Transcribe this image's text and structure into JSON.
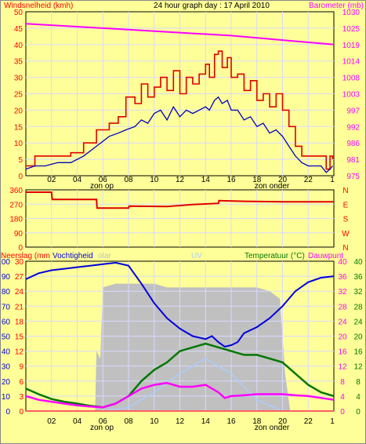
{
  "page_title": "24 hour graph day : 17 April 2010",
  "colors": {
    "background": "#ffff99",
    "plot": "#ffff99",
    "grid": "#d8d8ff",
    "frame": "#000000",
    "wind_avg": "#0000c0",
    "wind_gust": "#e00000",
    "barometer": "#ff00ff",
    "direction": "#e00000",
    "humidity": "#0000dd",
    "temperature": "#007700",
    "dewpoint": "#ff00ff",
    "solar": "#c0c0c0",
    "uv": "#aaccff",
    "rain": "#ff6060"
  },
  "chart_data": [
    {
      "id": "wind-barometer",
      "type": "line",
      "title": "24 hour graph day : 17 April 2010",
      "ylabel": "Windsnelheid (kmh)",
      "y2label": "Barometer (mb)",
      "ylim": [
        0,
        50
      ],
      "y2lim": [
        975,
        1030
      ],
      "yticks": [
        "0",
        "5",
        "10",
        "15",
        "20",
        "25",
        "30",
        "35",
        "40",
        "45",
        "50"
      ],
      "y2ticks": [
        "975",
        "981",
        "986",
        "992",
        "997",
        "1003",
        "1008",
        "1014",
        "1019",
        "1025",
        "1030"
      ],
      "xticks": [
        "02",
        "04",
        "06",
        "08",
        "10",
        "12",
        "14",
        "16",
        "18",
        "20",
        "22",
        "1"
      ],
      "annotations": [
        "zon op",
        "zon onder"
      ],
      "grid": true,
      "series": [
        {
          "key": "gust",
          "x": [
            0,
            0.7,
            1.5,
            2.5,
            3.5,
            4.5,
            5.5,
            6.5,
            7.2,
            7.8,
            8.5,
            9,
            9.5,
            10,
            10.5,
            11,
            11.5,
            12,
            12.5,
            13,
            13.5,
            14,
            14.3,
            14.7,
            15,
            15.3,
            15.7,
            16,
            16.5,
            17,
            17.5,
            18,
            18.5,
            19,
            19.5,
            20,
            20.5,
            21,
            21.5,
            22,
            22.5,
            23,
            23.4,
            23.7,
            23.9
          ],
          "values": [
            3,
            6,
            6,
            6,
            7,
            10,
            14,
            16,
            18,
            24,
            22,
            28,
            24,
            27,
            30,
            26,
            32,
            25,
            30,
            28,
            31,
            34,
            30,
            37,
            38,
            33,
            36,
            30,
            31,
            26,
            29,
            23,
            25,
            21,
            25,
            20,
            15,
            9,
            6,
            6,
            6,
            6,
            2,
            6,
            5
          ]
        },
        {
          "key": "avg",
          "x": [
            0,
            0.7,
            1.5,
            2.5,
            3.5,
            4.5,
            5.5,
            6.5,
            7.2,
            7.8,
            8.5,
            9,
            9.5,
            10,
            10.5,
            11,
            11.5,
            12,
            12.5,
            13,
            13.5,
            14,
            14.3,
            14.7,
            15,
            15.3,
            15.7,
            16,
            16.5,
            17,
            17.5,
            18,
            18.5,
            19,
            19.5,
            20,
            20.5,
            21,
            21.5,
            22,
            22.5,
            23,
            23.4,
            23.7,
            23.9
          ],
          "values": [
            2,
            3,
            3,
            4,
            4,
            6,
            9,
            12,
            13,
            14,
            15,
            17,
            16,
            19,
            20,
            17,
            21,
            18,
            20,
            19,
            20,
            21,
            20,
            23,
            24,
            22,
            23,
            20,
            20,
            17,
            18,
            15,
            16,
            13,
            14,
            12,
            9,
            6,
            4,
            3,
            3,
            3,
            1,
            2,
            3
          ]
        },
        {
          "key": "baro",
          "axis": "right",
          "x": [
            0,
            4,
            8,
            12,
            16,
            20,
            24
          ],
          "values": [
            1026,
            1025,
            1024,
            1023,
            1022,
            1020.5,
            1019
          ]
        }
      ]
    },
    {
      "id": "wind-direction",
      "type": "line",
      "ylim": [
        0,
        360
      ],
      "yticks": [
        "0",
        "90",
        "180",
        "270",
        "360"
      ],
      "y2ticks": [
        "N",
        "W",
        "S",
        "E",
        "N"
      ],
      "series": [
        {
          "key": "dir",
          "x": [
            0,
            2,
            2.05,
            5.5,
            5.55,
            8,
            8.05,
            11,
            13,
            15,
            15.05,
            17,
            20,
            24
          ],
          "values": [
            345,
            345,
            300,
            300,
            245,
            245,
            258,
            255,
            268,
            275,
            292,
            288,
            285,
            285
          ]
        }
      ]
    },
    {
      "id": "rain-humidity-solar-temp",
      "type": "line",
      "labels": [
        "Neerslag (mm",
        "Vochtigheid",
        "olar",
        "UV",
        "Temperatuur (°C)",
        "Dauwpunt"
      ],
      "yticks_rain": [
        "0",
        "3",
        "6",
        "9",
        "12",
        "15",
        "18",
        "21",
        "24",
        "27",
        "30"
      ],
      "yticks_humidity": [
        "0",
        "10",
        "20",
        "30",
        "40",
        "50",
        "60",
        "70",
        "80",
        "90",
        "100"
      ],
      "yticks_temp_outer": [
        "0",
        "4",
        "8",
        "12",
        "16",
        "20",
        "24",
        "28",
        "32",
        "36",
        "40"
      ],
      "yticks_temp_inner": [
        "0",
        "4",
        "8",
        "12",
        "16",
        "20",
        "24",
        "28",
        "32",
        "36",
        "40"
      ],
      "xticks": [
        "02",
        "04",
        "06",
        "08",
        "10",
        "12",
        "14",
        "16",
        "18",
        "20",
        "22",
        "1"
      ],
      "annotations": [
        "zon op",
        "zon onder"
      ],
      "humidity_lim": [
        0,
        100
      ],
      "temp_lim": [
        0,
        40
      ],
      "series": [
        {
          "key": "humidity",
          "x": [
            0,
            1,
            2,
            3,
            4,
            5,
            6,
            7,
            8,
            9,
            10,
            11,
            12,
            13,
            13.5,
            14,
            14.5,
            15,
            15.5,
            16,
            16.5,
            17,
            18,
            19,
            20,
            21,
            22,
            23,
            24
          ],
          "values": [
            88,
            92,
            94,
            95,
            96,
            97,
            98,
            99,
            97,
            85,
            72,
            62,
            55,
            50,
            49,
            48,
            50,
            46,
            43,
            44,
            46,
            52,
            56,
            62,
            70,
            80,
            86,
            89,
            90
          ]
        },
        {
          "key": "temperature",
          "x": [
            0,
            1,
            2,
            3,
            4,
            5,
            6,
            7,
            8,
            9,
            10,
            11,
            12,
            13,
            14,
            15,
            16,
            17,
            18,
            19,
            20,
            21,
            22,
            23,
            24
          ],
          "values": [
            6,
            4.5,
            3.2,
            2.5,
            2,
            1.4,
            1,
            2,
            4,
            8,
            11,
            13,
            16,
            17,
            18,
            17,
            16,
            15,
            15,
            14,
            13,
            10,
            7,
            5,
            4
          ]
        },
        {
          "key": "dewpoint",
          "x": [
            0,
            1,
            2,
            3,
            4,
            5,
            6,
            7,
            8,
            9,
            10,
            11,
            12,
            13,
            14,
            15,
            15.5,
            16,
            17,
            18,
            19,
            20,
            21,
            22,
            23,
            24
          ],
          "values": [
            4,
            3,
            2.5,
            2,
            1.5,
            1.2,
            1,
            2,
            4,
            6,
            7,
            7.5,
            6.5,
            6.5,
            7,
            5,
            3.5,
            4,
            4.2,
            4.5,
            4.5,
            4.5,
            4.2,
            4,
            3.5,
            3
          ]
        },
        {
          "key": "solar",
          "x": [
            0,
            5.4,
            5.5,
            5.8,
            6,
            7,
            8,
            9,
            10,
            11,
            12,
            13,
            14,
            15,
            16,
            17,
            18,
            19,
            19.8,
            20.2,
            20.6,
            21,
            24
          ],
          "values": [
            0,
            0,
            16,
            14,
            33,
            34,
            34,
            34,
            34,
            33,
            33,
            33,
            33,
            33,
            33,
            33,
            33,
            32,
            30,
            10,
            0,
            0,
            0
          ]
        },
        {
          "key": "uv",
          "x": [
            0,
            6,
            8,
            10,
            12,
            14,
            16,
            18,
            20,
            24
          ],
          "values": [
            0,
            0,
            1,
            5,
            10,
            14,
            10,
            3,
            0,
            0
          ]
        },
        {
          "key": "rain",
          "x": [
            0,
            24
          ],
          "values": [
            0,
            0
          ]
        }
      ]
    }
  ]
}
